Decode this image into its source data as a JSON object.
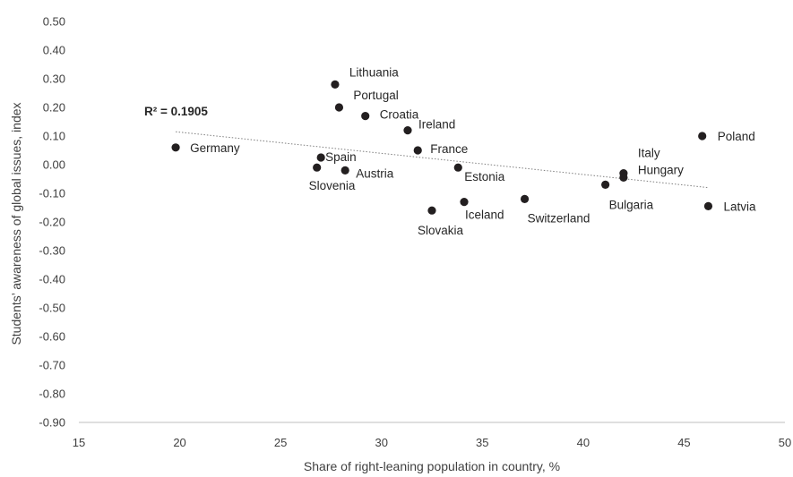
{
  "chart_data": {
    "type": "scatter",
    "xlabel": "Share of right-leaning population in country, %",
    "ylabel": "Students’ awareness of global issues, index",
    "xlim": [
      15,
      50
    ],
    "ylim": [
      -0.9,
      0.5
    ],
    "xticks": [
      "15",
      "20",
      "25",
      "30",
      "35",
      "40",
      "45",
      "50"
    ],
    "yticks": [
      "0.50",
      "0.40",
      "0.30",
      "0.20",
      "0.10",
      "0.00",
      "-0.10",
      "-0.20",
      "-0.30",
      "-0.40",
      "-0.50",
      "-0.60",
      "-0.70",
      "-0.80",
      "-0.90"
    ],
    "grid": false,
    "point_color": "#231f20",
    "trendline": {
      "type": "linear",
      "x": [
        19.8,
        46.2
      ],
      "y": [
        0.115,
        -0.08
      ],
      "style": "dotted",
      "r2_label": "R² = 0.1905"
    },
    "points": [
      {
        "label": "Germany",
        "x": 19.8,
        "y": 0.06
      },
      {
        "label": "Lithuania",
        "x": 27.7,
        "y": 0.28
      },
      {
        "label": "Portugal",
        "x": 27.9,
        "y": 0.2
      },
      {
        "label": "Croatia",
        "x": 29.2,
        "y": 0.17
      },
      {
        "label": "Ireland",
        "x": 31.3,
        "y": 0.12
      },
      {
        "label": "France",
        "x": 31.8,
        "y": 0.05
      },
      {
        "label": "Spain",
        "x": 27.0,
        "y": 0.025
      },
      {
        "label": "Slovenia",
        "x": 26.8,
        "y": -0.01
      },
      {
        "label": "Austria",
        "x": 28.2,
        "y": -0.02
      },
      {
        "label": "Estonia",
        "x": 33.8,
        "y": -0.01
      },
      {
        "label": "Slovakia",
        "x": 32.5,
        "y": -0.16
      },
      {
        "label": "Iceland",
        "x": 34.1,
        "y": -0.13
      },
      {
        "label": "Switzerland",
        "x": 37.1,
        "y": -0.12
      },
      {
        "label": "Bulgaria",
        "x": 41.1,
        "y": -0.07
      },
      {
        "label": "Italy",
        "x": 42.0,
        "y": -0.03
      },
      {
        "label": "Hungary",
        "x": 42.0,
        "y": -0.045
      },
      {
        "label": "Poland",
        "x": 45.9,
        "y": 0.1
      },
      {
        "label": "Latvia",
        "x": 46.2,
        "y": -0.145
      }
    ]
  }
}
